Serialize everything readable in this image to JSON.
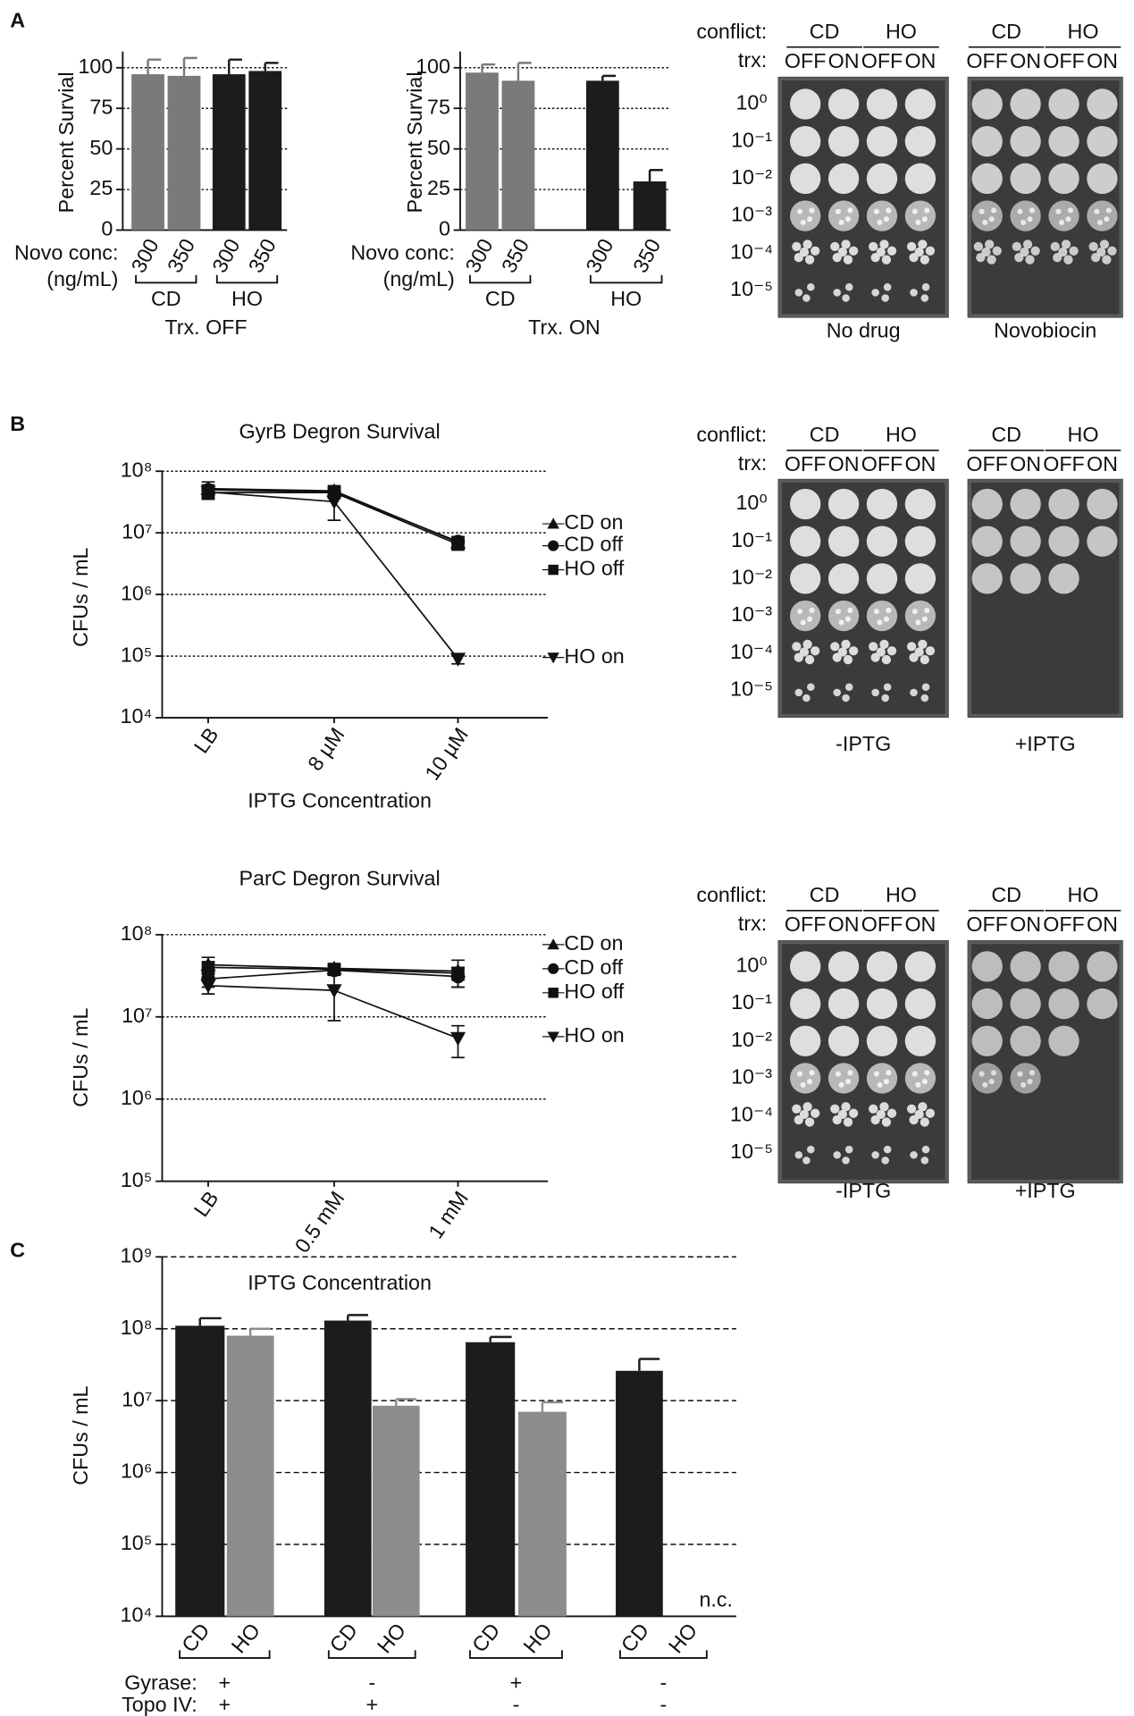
{
  "panels": [
    "A",
    "B",
    "C"
  ],
  "chart_data": [
    {
      "type": "bar",
      "y_label": "Percent Survial",
      "x_label": "Novo conc:",
      "x_unit": "(ng/mL)",
      "caption": "Trx. OFF",
      "categories": [
        "300",
        "350",
        "300",
        "350"
      ],
      "groups": [
        "CD",
        "HO"
      ],
      "values": [
        96,
        95,
        96,
        98
      ],
      "errors": [
        9,
        11,
        9,
        5
      ],
      "colors": [
        "#7a7a7a",
        "#7a7a7a",
        "#1c1c1c",
        "#1c1c1c"
      ],
      "ylim": [
        0,
        110
      ],
      "yticks": [
        0,
        25,
        50,
        75,
        100
      ],
      "grid": true
    },
    {
      "type": "bar",
      "y_label": "Percent Survial",
      "x_label": "Novo conc:",
      "x_unit": "(ng/mL)",
      "caption": "Trx. ON",
      "categories": [
        "300",
        "350",
        "300",
        "350"
      ],
      "groups": [
        "CD",
        "HO"
      ],
      "values": [
        97,
        92,
        92,
        30
      ],
      "errors": [
        5,
        11,
        3,
        7
      ],
      "colors": [
        "#7a7a7a",
        "#7a7a7a",
        "#1c1c1c",
        "#1c1c1c"
      ],
      "ylim": [
        0,
        110
      ],
      "yticks": [
        0,
        25,
        50,
        75,
        100
      ],
      "grid": true
    },
    {
      "type": "line",
      "title": "GyrB Degron Survival",
      "y_label": "CFUs / mL",
      "x_label": "IPTG Concentration",
      "log_scale": true,
      "grid": true,
      "categories": [
        "LB",
        "8 µM",
        "10 µM"
      ],
      "ylim": [
        10000,
        100000000
      ],
      "yticks": [
        {
          "value": 10000,
          "label": "10⁴"
        },
        {
          "value": 100000,
          "label": "10⁵"
        },
        {
          "value": 1000000,
          "label": "10⁶"
        },
        {
          "value": 10000000,
          "label": "10⁷"
        },
        {
          "value": 100000000,
          "label": "10⁸"
        }
      ],
      "series": [
        {
          "name": "CD on",
          "marker": "triangle-up",
          "color": "#111111",
          "values": [
            52000000,
            48000000,
            7000000
          ],
          "errors": [
            15000000,
            10000000,
            1500000
          ]
        },
        {
          "name": "CD off",
          "marker": "circle",
          "color": "#111111",
          "values": [
            50000000,
            46000000,
            7200000
          ],
          "errors": [
            10000000,
            8000000,
            1500000
          ]
        },
        {
          "name": "HO off",
          "marker": "square",
          "color": "#111111",
          "values": [
            45000000,
            45000000,
            6500000
          ],
          "errors": [
            10000000,
            8000000,
            1200000
          ]
        },
        {
          "name": "HO on",
          "marker": "triangle-down",
          "color": "#111111",
          "values": [
            46000000,
            32000000,
            90000
          ],
          "errors": [
            10000000,
            16000000,
            15000
          ]
        }
      ]
    },
    {
      "type": "line",
      "title": "ParC Degron Survival",
      "y_label": "CFUs / mL",
      "x_label": "IPTG Concentration",
      "log_scale": true,
      "grid": true,
      "categories": [
        "LB",
        "0.5 mM",
        "1 mM"
      ],
      "ylim": [
        100000,
        100000000
      ],
      "yticks": [
        {
          "value": 100000,
          "label": "10⁵"
        },
        {
          "value": 1000000,
          "label": "10⁶"
        },
        {
          "value": 10000000,
          "label": "10⁷"
        },
        {
          "value": 100000000,
          "label": "10⁸"
        }
      ],
      "series": [
        {
          "name": "CD on",
          "marker": "triangle-up",
          "color": "#111111",
          "values": [
            43000000,
            39000000,
            36000000
          ],
          "errors": [
            10000000,
            5000000,
            13000000
          ]
        },
        {
          "name": "CD off",
          "marker": "circle",
          "color": "#111111",
          "values": [
            29000000,
            37000000,
            31000000
          ],
          "errors": [
            6000000,
            5000000,
            8000000
          ]
        },
        {
          "name": "HO off",
          "marker": "square",
          "color": "#111111",
          "values": [
            40000000,
            38000000,
            34000000
          ],
          "errors": [
            6000000,
            4000000,
            6000000
          ]
        },
        {
          "name": "HO on",
          "marker": "triangle-down",
          "color": "#111111",
          "values": [
            24000000,
            21000000,
            5500000
          ],
          "errors": [
            5000000,
            12000000,
            2300000
          ]
        }
      ]
    },
    {
      "type": "bar",
      "y_label": "CFUs / mL",
      "log_scale": true,
      "grid": true,
      "categories": [
        "CD",
        "HO",
        "CD",
        "HO",
        "CD",
        "HO",
        "CD",
        "HO"
      ],
      "values": [
        110000000,
        80000000,
        130000000,
        8500000,
        65000000,
        7000000,
        26000000,
        null
      ],
      "errors": [
        30000000,
        20000000,
        25000000,
        2000000,
        12000000,
        2500000,
        12000000,
        null
      ],
      "colors": [
        "#1c1c1c",
        "#8c8c8c",
        "#1c1c1c",
        "#8c8c8c",
        "#1c1c1c",
        "#8c8c8c",
        "#1c1c1c",
        "#8c8c8c"
      ],
      "null_label": "n.c.",
      "conditions": [
        {
          "label": "Gyrase:",
          "values": [
            "+",
            "-",
            "+",
            "-"
          ]
        },
        {
          "label": "Topo IV:",
          "values": [
            "+",
            "+",
            "-",
            "-"
          ]
        }
      ],
      "ylim": [
        10000,
        1000000000
      ],
      "yticks": [
        {
          "value": 10000,
          "label": "10⁴"
        },
        {
          "value": 100000,
          "label": "10⁵"
        },
        {
          "value": 1000000,
          "label": "10⁶"
        },
        {
          "value": 10000000,
          "label": "10⁷"
        },
        {
          "value": 100000000,
          "label": "10⁸"
        },
        {
          "value": 1000000000,
          "label": "10⁹"
        }
      ]
    }
  ],
  "plates": [
    {
      "conflict_label": "conflict:",
      "trx_label": "trx:",
      "dilutions": [
        "10⁰",
        "10⁻¹",
        "10⁻²",
        "10⁻³",
        "10⁻⁴",
        "10⁻⁵"
      ],
      "plates": [
        {
          "groups": [
            "CD",
            "HO"
          ],
          "states": [
            "OFF",
            "ON",
            "OFF",
            "ON"
          ],
          "caption": "No drug"
        },
        {
          "groups": [
            "CD",
            "HO"
          ],
          "states": [
            "OFF",
            "ON",
            "OFF",
            "ON"
          ],
          "caption": "Novobiocin"
        }
      ]
    },
    {
      "conflict_label": "conflict:",
      "trx_label": "trx:",
      "dilutions": [
        "10⁰",
        "10⁻¹",
        "10⁻²",
        "10⁻³",
        "10⁻⁴",
        "10⁻⁵"
      ],
      "plates": [
        {
          "groups": [
            "CD",
            "HO"
          ],
          "states": [
            "OFF",
            "ON",
            "OFF",
            "ON"
          ],
          "caption": "-IPTG"
        },
        {
          "groups": [
            "CD",
            "HO"
          ],
          "states": [
            "OFF",
            "ON",
            "OFF",
            "ON"
          ],
          "caption": "+IPTG"
        }
      ]
    },
    {
      "conflict_label": "conflict:",
      "trx_label": "trx:",
      "dilutions": [
        "10⁰",
        "10⁻¹",
        "10⁻²",
        "10⁻³",
        "10⁻⁴",
        "10⁻⁵"
      ],
      "plates": [
        {
          "groups": [
            "CD",
            "HO"
          ],
          "states": [
            "OFF",
            "ON",
            "OFF",
            "ON"
          ],
          "caption": "-IPTG"
        },
        {
          "groups": [
            "CD",
            "HO"
          ],
          "states": [
            "OFF",
            "ON",
            "OFF",
            "ON"
          ],
          "caption": "+IPTG"
        }
      ]
    }
  ]
}
